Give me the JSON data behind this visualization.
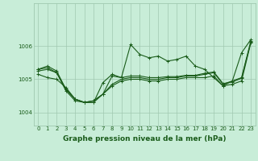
{
  "title": "Graphe pression niveau de la mer (hPa)",
  "bg_color": "#c8edd8",
  "plot_bg_color": "#c8edd8",
  "grid_color": "#a0c8b0",
  "line_color": "#1a5c1a",
  "xlim": [
    -0.5,
    23.5
  ],
  "ylim": [
    1003.6,
    1007.3
  ],
  "xticks": [
    0,
    1,
    2,
    3,
    4,
    5,
    6,
    7,
    8,
    9,
    10,
    11,
    12,
    13,
    14,
    15,
    16,
    17,
    18,
    19,
    20,
    21,
    22,
    23
  ],
  "yticks": [
    1004,
    1005,
    1006
  ],
  "series": [
    [
      1005.3,
      1005.4,
      1005.25,
      1004.7,
      1004.4,
      1004.3,
      1004.3,
      1004.55,
      1004.85,
      1005.0,
      1005.05,
      1005.05,
      1005.0,
      1005.0,
      1005.05,
      1005.05,
      1005.1,
      1005.1,
      1005.15,
      1005.2,
      1004.85,
      1004.95,
      1005.05,
      1006.15
    ],
    [
      1005.25,
      1005.3,
      1005.2,
      1004.65,
      1004.35,
      1004.3,
      1004.3,
      1004.9,
      1005.15,
      1005.05,
      1006.05,
      1005.75,
      1005.65,
      1005.7,
      1005.55,
      1005.6,
      1005.7,
      1005.4,
      1005.3,
      1005.05,
      1004.8,
      1004.95,
      1005.8,
      1006.2
    ],
    [
      1005.15,
      1005.05,
      1005.0,
      1004.75,
      1004.4,
      1004.3,
      1004.35,
      1004.55,
      1004.8,
      1004.95,
      1005.0,
      1005.0,
      1004.95,
      1004.95,
      1005.0,
      1005.0,
      1005.05,
      1005.05,
      1005.05,
      1005.1,
      1004.8,
      1004.85,
      1004.95,
      1006.1
    ],
    [
      1005.3,
      1005.35,
      1005.2,
      1004.7,
      1004.4,
      1004.3,
      1004.35,
      1004.55,
      1005.1,
      1005.05,
      1005.1,
      1005.1,
      1005.05,
      1005.05,
      1005.08,
      1005.08,
      1005.12,
      1005.12,
      1005.18,
      1005.22,
      1004.87,
      1004.92,
      1005.03,
      1006.12
    ]
  ],
  "marker": "+",
  "markersize": 3,
  "linewidth": 0.8,
  "tick_fontsize": 5,
  "xlabel_fontsize": 6.5
}
